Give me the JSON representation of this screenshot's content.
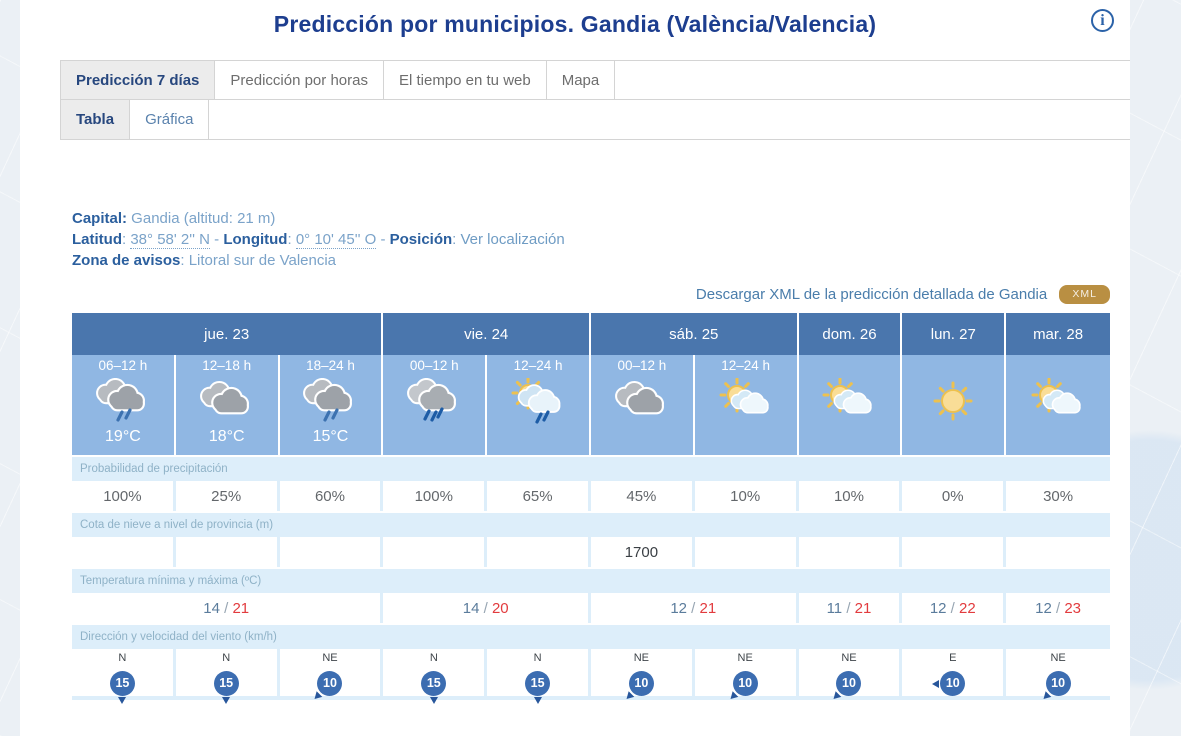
{
  "colors": {
    "accent_navy": "#1d3e8f",
    "day_header_blue": "#4a76ad",
    "icon_row_blue": "#90b7e3",
    "strip_blue": "#ddeefa",
    "badge_gold": "#b98f42",
    "temp_max_red": "#e23b3e",
    "temp_min_blue": "#5b7c9c",
    "wind_circle_blue": "#3c6db1"
  },
  "header": {
    "title": "Predicción por municipios. Gandia (València/Valencia)",
    "info_icon_glyph": "i"
  },
  "tabs": {
    "primary": [
      {
        "label": "Predicción 7 días",
        "active": true
      },
      {
        "label": "Predicción por horas",
        "active": false
      },
      {
        "label": "El tiempo en tu web",
        "active": false
      },
      {
        "label": "Mapa",
        "active": false
      }
    ],
    "secondary": [
      {
        "label": "Tabla",
        "active": true
      },
      {
        "label": "Gráfica",
        "active": false
      }
    ]
  },
  "location": {
    "capital_label": "Capital:",
    "capital_value": " Gandia (altitud: 21 m)",
    "latitude_label": "Latitud",
    "colon": ": ",
    "latitude_value": "38° 58' 2'' N",
    "sep": " - ",
    "longitude_label": "Longitud",
    "longitude_value": "0° 10' 45'' O",
    "position_label": "Posición",
    "position_link": "Ver localización",
    "zone_label": "Zona de avisos",
    "zone_value": "Litoral sur de Valencia"
  },
  "download": {
    "link_text": "Descargar XML de la predicción detallada de Gandia",
    "badge": "XML"
  },
  "table": {
    "slash": " / ",
    "days": [
      {
        "label": "jue. 23"
      },
      {
        "label": "vie. 24"
      },
      {
        "label": "sáb. 25"
      },
      {
        "label": "dom. 26"
      },
      {
        "label": "lun. 27"
      },
      {
        "label": "mar. 28"
      }
    ],
    "rows": {
      "precipitation": "Probabilidad de precipitación",
      "snow": "Cota de nieve a nivel de provincia (m)",
      "temperature": "Temperatura mínima y máxima (ºC)",
      "wind": "Dirección y velocidad del viento (km/h)"
    },
    "columns": [
      {
        "time": "06–12 h",
        "icon": "cloud-rain",
        "temp": "19°C",
        "precip": "100%",
        "snow": "",
        "wind": {
          "dir": "N",
          "speed": "15"
        }
      },
      {
        "time": "12–18 h",
        "icon": "cloud",
        "temp": "18°C",
        "precip": "25%",
        "snow": "",
        "wind": {
          "dir": "N",
          "speed": "15"
        }
      },
      {
        "time": "18–24 h",
        "icon": "cloud-rain",
        "temp": "15°C",
        "precip": "60%",
        "snow": "",
        "wind": {
          "dir": "NE",
          "speed": "10"
        }
      },
      {
        "time": "00–12 h",
        "icon": "rain",
        "temp": "",
        "precip": "100%",
        "snow": "",
        "wind": {
          "dir": "N",
          "speed": "15"
        }
      },
      {
        "time": "12–24 h",
        "icon": "sun-cloud-rain",
        "temp": "",
        "precip": "65%",
        "snow": "",
        "wind": {
          "dir": "N",
          "speed": "15"
        }
      },
      {
        "time": "00–12 h",
        "icon": "cloud",
        "temp": "",
        "precip": "45%",
        "snow": "1700",
        "wind": {
          "dir": "NE",
          "speed": "10"
        }
      },
      {
        "time": "12–24 h",
        "icon": "sun-cloud",
        "temp": "",
        "precip": "10%",
        "snow": "",
        "wind": {
          "dir": "NE",
          "speed": "10"
        }
      },
      {
        "time": "",
        "icon": "sun-cloud",
        "temp": "",
        "precip": "10%",
        "snow": "",
        "wind": {
          "dir": "NE",
          "speed": "10"
        }
      },
      {
        "time": "",
        "icon": "sun",
        "temp": "",
        "precip": "0%",
        "snow": "",
        "wind": {
          "dir": "E",
          "speed": "10"
        }
      },
      {
        "time": "",
        "icon": "sun-cloud",
        "temp": "",
        "precip": "30%",
        "snow": "",
        "wind": {
          "dir": "NE",
          "speed": "10"
        }
      }
    ],
    "temperature": [
      {
        "min": "14",
        "max": "21"
      },
      {
        "min": "14",
        "max": "20"
      },
      {
        "min": "12",
        "max": "21"
      },
      {
        "min": "11",
        "max": "21"
      },
      {
        "min": "12",
        "max": "22"
      },
      {
        "min": "12",
        "max": "23"
      }
    ]
  }
}
